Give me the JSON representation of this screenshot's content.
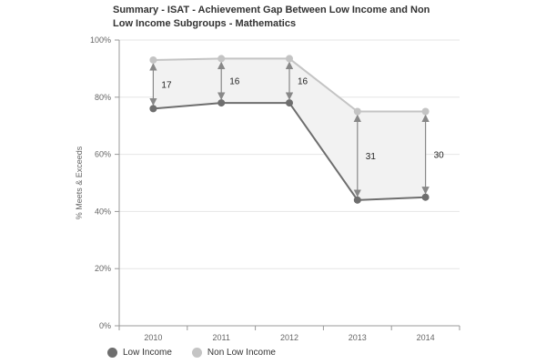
{
  "chart_data": {
    "type": "line",
    "title_line1": "Summary - ISAT - Achievement Gap Between Low Income and Non",
    "title_line2": "Low Income Subgroups - Mathematics",
    "ylabel": "% Meets & Exceeds",
    "xlabel": "",
    "ylim": [
      0,
      100
    ],
    "yticks": [
      0,
      20,
      40,
      60,
      80,
      100
    ],
    "ytick_labels": [
      "0%",
      "20%",
      "40%",
      "60%",
      "80%",
      "100%"
    ],
    "categories": [
      "2010",
      "2011",
      "2012",
      "2013",
      "2014"
    ],
    "series": [
      {
        "name": "Low Income",
        "values": [
          76,
          78,
          78,
          44,
          45
        ],
        "color": "#6e6e6e"
      },
      {
        "name": "Non Low Income",
        "values": [
          93,
          93.5,
          93.5,
          75,
          75
        ],
        "color": "#c4c4c4"
      }
    ],
    "gap_labels": [
      "17",
      "16",
      "16",
      "31",
      "30"
    ],
    "gap_fill_color": "#f2f2f2",
    "arrow_color": "#888888",
    "grid": true,
    "legend_position": "bottom-left"
  }
}
